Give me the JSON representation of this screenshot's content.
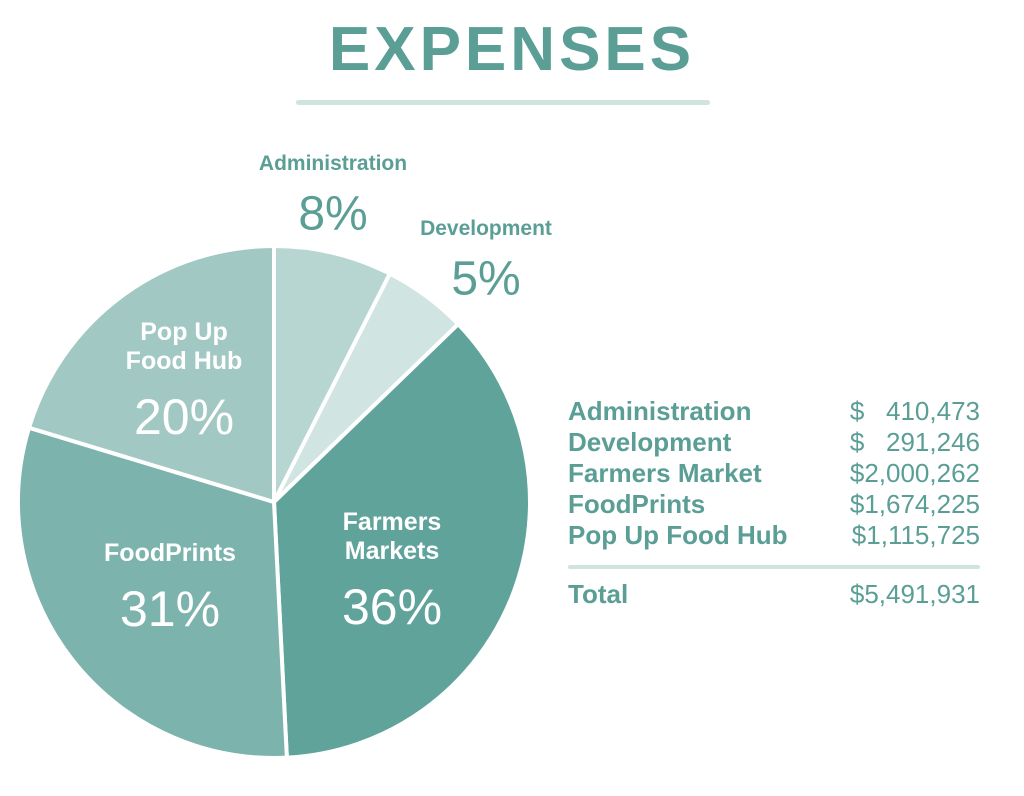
{
  "title": "EXPENSES",
  "chart_data": {
    "type": "pie",
    "title": "EXPENSES",
    "slices": [
      {
        "name": "Administration",
        "label_lines": [
          "Administration"
        ],
        "percent_label": "8%",
        "value": 410473,
        "color": "#b7d6d2"
      },
      {
        "name": "Development",
        "label_lines": [
          "Development"
        ],
        "percent_label": "5%",
        "value": 291246,
        "color": "#d0e4e1"
      },
      {
        "name": "Farmers Markets",
        "label_lines": [
          "Farmers",
          "Markets"
        ],
        "percent_label": "36%",
        "value": 2000262,
        "color": "#5fa39b"
      },
      {
        "name": "FoodPrints",
        "label_lines": [
          "FoodPrints"
        ],
        "percent_label": "31%",
        "value": 1674225,
        "color": "#7db3ad"
      },
      {
        "name": "Pop Up Food Hub",
        "label_lines": [
          "Pop Up",
          "Food Hub"
        ],
        "percent_label": "20%",
        "value": 1115725,
        "color": "#a2c8c3"
      }
    ]
  },
  "table": {
    "rows": [
      {
        "label": "Administration",
        "amount": "$   410,473"
      },
      {
        "label": "Development",
        "amount": "$   291,246"
      },
      {
        "label": "Farmers Market",
        "amount": "$2,000,262"
      },
      {
        "label": "FoodPrints",
        "amount": "$1,674,225"
      },
      {
        "label": "Pop Up Food Hub",
        "amount": "$1,115,725"
      }
    ],
    "total_label": "Total",
    "total_amount": "$5,491,931"
  }
}
